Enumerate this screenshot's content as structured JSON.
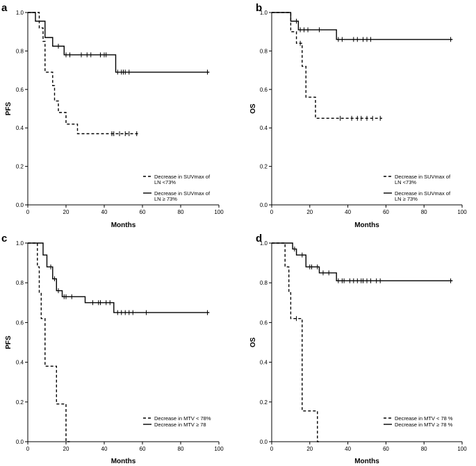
{
  "chart_data": [
    {
      "panel": "a",
      "type": "line",
      "subtype": "kaplan-meier",
      "xlabel": "Months",
      "ylabel": "PFS",
      "xlim": [
        0,
        100
      ],
      "ylim": [
        0,
        1
      ],
      "xticks": [
        "0",
        "20",
        "40",
        "60",
        "80",
        "100"
      ],
      "yticks": [
        "0.0",
        "0.2",
        "0.4",
        "0.6",
        "0.8",
        "1.0"
      ],
      "series": [
        {
          "name": "Decrease in SUVmax of LN <73%",
          "legend_lines": [
            "Decrease in SUVmax of",
            "LN <73%"
          ],
          "style": "dashed",
          "steps": [
            [
              0,
              1.0
            ],
            [
              6,
              1.0
            ],
            [
              6,
              0.92
            ],
            [
              8,
              0.92
            ],
            [
              8,
              0.85
            ],
            [
              9,
              0.85
            ],
            [
              9,
              0.69
            ],
            [
              13,
              0.69
            ],
            [
              13,
              0.62
            ],
            [
              14,
              0.62
            ],
            [
              14,
              0.54
            ],
            [
              16,
              0.54
            ],
            [
              16,
              0.48
            ],
            [
              20,
              0.48
            ],
            [
              20,
              0.42
            ],
            [
              26,
              0.42
            ],
            [
              26,
              0.37
            ],
            [
              58,
              0.37
            ]
          ],
          "censored": [
            [
              44,
              0.37
            ],
            [
              45,
              0.37
            ],
            [
              48,
              0.37
            ],
            [
              51,
              0.37
            ],
            [
              53,
              0.37
            ],
            [
              57,
              0.37
            ]
          ]
        },
        {
          "name": "Decrease in SUVmax of LN ≥ 73%",
          "legend_lines": [
            "Decrease in SUVmax of",
            "LN ≥ 73%"
          ],
          "style": "solid",
          "steps": [
            [
              0,
              1.0
            ],
            [
              4,
              1.0
            ],
            [
              4,
              0.955
            ],
            [
              9,
              0.955
            ],
            [
              9,
              0.87
            ],
            [
              13,
              0.87
            ],
            [
              13,
              0.825
            ],
            [
              19,
              0.825
            ],
            [
              19,
              0.78
            ],
            [
              46,
              0.78
            ],
            [
              46,
              0.69
            ],
            [
              95,
              0.69
            ]
          ],
          "censored": [
            [
              16,
              0.825
            ],
            [
              20,
              0.78
            ],
            [
              22,
              0.78
            ],
            [
              28,
              0.78
            ],
            [
              31,
              0.78
            ],
            [
              33,
              0.78
            ],
            [
              38,
              0.78
            ],
            [
              40,
              0.78
            ],
            [
              41,
              0.78
            ],
            [
              47,
              0.69
            ],
            [
              49,
              0.69
            ],
            [
              50,
              0.69
            ],
            [
              51,
              0.69
            ],
            [
              53,
              0.69
            ],
            [
              94,
              0.69
            ]
          ]
        }
      ]
    },
    {
      "panel": "b",
      "type": "line",
      "subtype": "kaplan-meier",
      "xlabel": "Months",
      "ylabel": "OS",
      "xlim": [
        0,
        100
      ],
      "ylim": [
        0,
        1
      ],
      "xticks": [
        "0",
        "20",
        "40",
        "60",
        "80",
        "100"
      ],
      "yticks": [
        "0.0",
        "0.2",
        "0.4",
        "0.6",
        "0.8",
        "1.0"
      ],
      "series": [
        {
          "name": "Decrease in SUVmax of LN <73%",
          "legend_lines": [
            "Decrease in SUVmax of",
            "LN <73%"
          ],
          "style": "dashed",
          "steps": [
            [
              0,
              1.0
            ],
            [
              10,
              1.0
            ],
            [
              10,
              0.9
            ],
            [
              13,
              0.9
            ],
            [
              13,
              0.84
            ],
            [
              16,
              0.84
            ],
            [
              16,
              0.72
            ],
            [
              18,
              0.72
            ],
            [
              18,
              0.56
            ],
            [
              23,
              0.56
            ],
            [
              23,
              0.45
            ],
            [
              58,
              0.45
            ]
          ],
          "censored": [
            [
              15,
              0.84
            ],
            [
              36,
              0.45
            ],
            [
              42,
              0.45
            ],
            [
              45,
              0.45
            ],
            [
              47,
              0.45
            ],
            [
              50,
              0.45
            ],
            [
              53,
              0.45
            ],
            [
              57,
              0.45
            ]
          ]
        },
        {
          "name": "Decrease in SUVmax of LN ≥ 73%",
          "legend_lines": [
            "Decrease in SUVmax of",
            "LN ≥ 73%"
          ],
          "style": "solid",
          "steps": [
            [
              0,
              1.0
            ],
            [
              10,
              1.0
            ],
            [
              10,
              0.955
            ],
            [
              14,
              0.955
            ],
            [
              14,
              0.91
            ],
            [
              34,
              0.91
            ],
            [
              34,
              0.86
            ],
            [
              95,
              0.86
            ]
          ],
          "censored": [
            [
              13,
              0.955
            ],
            [
              15,
              0.91
            ],
            [
              17,
              0.91
            ],
            [
              19,
              0.91
            ],
            [
              25,
              0.91
            ],
            [
              35,
              0.86
            ],
            [
              37,
              0.86
            ],
            [
              43,
              0.86
            ],
            [
              45,
              0.86
            ],
            [
              48,
              0.86
            ],
            [
              50,
              0.86
            ],
            [
              52,
              0.86
            ],
            [
              94,
              0.86
            ]
          ]
        }
      ]
    },
    {
      "panel": "c",
      "type": "line",
      "subtype": "kaplan-meier",
      "xlabel": "Months",
      "ylabel": "PFS",
      "xlim": [
        0,
        100
      ],
      "ylim": [
        0,
        1
      ],
      "xticks": [
        "0",
        "20",
        "40",
        "60",
        "80",
        "100"
      ],
      "yticks": [
        "0.0",
        "0.2",
        "0.4",
        "0.6",
        "0.8",
        "1.0"
      ],
      "series": [
        {
          "name": "Decrease in MTV < 78%",
          "legend_lines": [
            "Decrease in MTV < 78%"
          ],
          "style": "dashed",
          "steps": [
            [
              0,
              1.0
            ],
            [
              5,
              1.0
            ],
            [
              5,
              0.88
            ],
            [
              6,
              0.88
            ],
            [
              6,
              0.75
            ],
            [
              7,
              0.75
            ],
            [
              7,
              0.62
            ],
            [
              9,
              0.62
            ],
            [
              9,
              0.38
            ],
            [
              15,
              0.38
            ],
            [
              15,
              0.19
            ],
            [
              20,
              0.19
            ],
            [
              20,
              0.0
            ],
            [
              22,
              0.0
            ]
          ],
          "censored": []
        },
        {
          "name": "Decrease in MTV ≥ 78",
          "legend_lines": [
            "Decrease in MTV ≥ 78"
          ],
          "style": "solid",
          "steps": [
            [
              0,
              1.0
            ],
            [
              8,
              1.0
            ],
            [
              8,
              0.94
            ],
            [
              10,
              0.94
            ],
            [
              10,
              0.88
            ],
            [
              13,
              0.88
            ],
            [
              13,
              0.82
            ],
            [
              15,
              0.82
            ],
            [
              15,
              0.76
            ],
            [
              18,
              0.76
            ],
            [
              18,
              0.73
            ],
            [
              30,
              0.73
            ],
            [
              30,
              0.7
            ],
            [
              45,
              0.7
            ],
            [
              45,
              0.65
            ],
            [
              95,
              0.65
            ]
          ],
          "censored": [
            [
              12,
              0.88
            ],
            [
              14,
              0.82
            ],
            [
              16,
              0.76
            ],
            [
              19,
              0.73
            ],
            [
              20,
              0.73
            ],
            [
              23,
              0.73
            ],
            [
              34,
              0.7
            ],
            [
              37,
              0.7
            ],
            [
              38,
              0.7
            ],
            [
              41,
              0.7
            ],
            [
              43,
              0.7
            ],
            [
              47,
              0.65
            ],
            [
              49,
              0.65
            ],
            [
              51,
              0.65
            ],
            [
              53,
              0.65
            ],
            [
              55,
              0.65
            ],
            [
              62,
              0.65
            ],
            [
              94,
              0.65
            ]
          ]
        }
      ]
    },
    {
      "panel": "d",
      "type": "line",
      "subtype": "kaplan-meier",
      "xlabel": "Months",
      "ylabel": "OS",
      "xlim": [
        0,
        100
      ],
      "ylim": [
        0,
        1
      ],
      "xticks": [
        "0",
        "20",
        "40",
        "60",
        "80",
        "100"
      ],
      "yticks": [
        "0.0",
        "0.2",
        "0.4",
        "0.6",
        "0.8",
        "1.0"
      ],
      "series": [
        {
          "name": "Decrease in MTV < 78 %",
          "legend_lines": [
            "Decrease in MTV < 78 %"
          ],
          "style": "dashed",
          "steps": [
            [
              0,
              1.0
            ],
            [
              7,
              1.0
            ],
            [
              7,
              0.88
            ],
            [
              9,
              0.88
            ],
            [
              9,
              0.75
            ],
            [
              10,
              0.75
            ],
            [
              10,
              0.62
            ],
            [
              16,
              0.62
            ],
            [
              16,
              0.155
            ],
            [
              24,
              0.155
            ],
            [
              24,
              0.0
            ],
            [
              25,
              0.0
            ]
          ],
          "censored": [
            [
              13,
              0.62
            ]
          ]
        },
        {
          "name": "Decrease in MTV ≥ 78 %",
          "legend_lines": [
            "Decrease in MTV ≥ 78 %"
          ],
          "style": "solid",
          "steps": [
            [
              0,
              1.0
            ],
            [
              11,
              1.0
            ],
            [
              11,
              0.97
            ],
            [
              13,
              0.97
            ],
            [
              13,
              0.94
            ],
            [
              18,
              0.94
            ],
            [
              18,
              0.88
            ],
            [
              25,
              0.88
            ],
            [
              25,
              0.85
            ],
            [
              34,
              0.85
            ],
            [
              34,
              0.81
            ],
            [
              95,
              0.81
            ]
          ],
          "censored": [
            [
              12,
              0.97
            ],
            [
              16,
              0.94
            ],
            [
              20,
              0.88
            ],
            [
              21,
              0.88
            ],
            [
              24,
              0.88
            ],
            [
              27,
              0.85
            ],
            [
              30,
              0.85
            ],
            [
              35,
              0.81
            ],
            [
              37,
              0.81
            ],
            [
              38,
              0.81
            ],
            [
              41,
              0.81
            ],
            [
              43,
              0.81
            ],
            [
              45,
              0.81
            ],
            [
              47,
              0.81
            ],
            [
              48,
              0.81
            ],
            [
              50,
              0.81
            ],
            [
              52,
              0.81
            ],
            [
              55,
              0.81
            ],
            [
              57,
              0.81
            ],
            [
              94,
              0.81
            ]
          ]
        }
      ]
    }
  ]
}
